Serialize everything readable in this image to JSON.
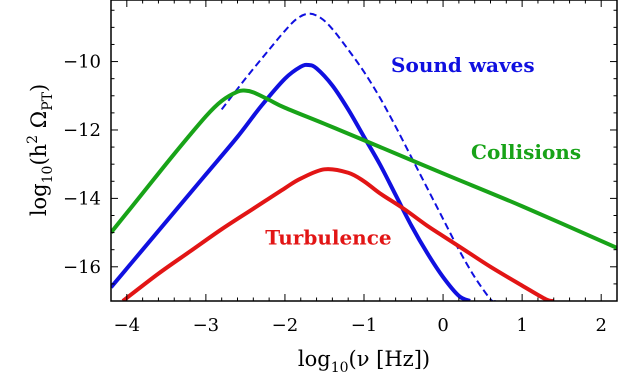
{
  "chart_data": {
    "type": "line",
    "title": "",
    "xlabel_parts": {
      "pre": "log",
      "sub": "10",
      "post": "(ν [Hz])"
    },
    "ylabel_parts": {
      "pre": "log",
      "sub": "10",
      "mid": "(h",
      "sup": "2",
      "omega": " Ω",
      "osub": "PT",
      "post": ")"
    },
    "xlim": [
      -4.2,
      2.2
    ],
    "ylim": [
      -17.0,
      -8.2
    ],
    "xticks": [
      -4,
      -3,
      -2,
      -1,
      0,
      1,
      2
    ],
    "xtick_labels": [
      "−4",
      "−3",
      "−2",
      "−1",
      "0",
      "1",
      "2"
    ],
    "yticks": [
      -16,
      -14,
      -12,
      -10
    ],
    "ytick_labels": [
      "−16",
      "−14",
      "−12",
      "−10"
    ],
    "grid": false,
    "series": [
      {
        "name": "Sound waves",
        "color": "#1010e0",
        "style": "solid",
        "x": [
          -4.2,
          -3.8,
          -3.4,
          -3.0,
          -2.6,
          -2.3,
          -2.0,
          -1.8,
          -1.7,
          -1.6,
          -1.4,
          -1.2,
          -1.0,
          -0.8,
          -0.6,
          -0.4,
          -0.2,
          0.0,
          0.2,
          0.34
        ],
        "y": [
          -16.6,
          -15.5,
          -14.4,
          -13.3,
          -12.2,
          -11.3,
          -10.5,
          -10.15,
          -10.1,
          -10.2,
          -10.7,
          -11.4,
          -12.2,
          -13.0,
          -13.9,
          -14.8,
          -15.6,
          -16.3,
          -16.85,
          -17.0
        ]
      },
      {
        "name": "Sound waves (dashed)",
        "color": "#1010e0",
        "style": "dashed",
        "x": [
          -2.8,
          -2.5,
          -2.2,
          -2.0,
          -1.85,
          -1.7,
          -1.55,
          -1.4,
          -1.2,
          -1.0,
          -0.8,
          -0.6,
          -0.4,
          -0.2,
          0.0,
          0.2,
          0.4,
          0.6,
          0.66
        ],
        "y": [
          -11.4,
          -10.5,
          -9.65,
          -9.1,
          -8.75,
          -8.6,
          -8.72,
          -9.05,
          -9.65,
          -10.3,
          -11.05,
          -11.9,
          -12.8,
          -13.7,
          -14.6,
          -15.5,
          -16.3,
          -16.95,
          -17.0
        ]
      },
      {
        "name": "Collisions",
        "color": "#18a318",
        "style": "solid",
        "x": [
          -4.2,
          -3.8,
          -3.4,
          -3.0,
          -2.8,
          -2.6,
          -2.5,
          -2.4,
          -2.2,
          -2.0,
          -1.5,
          -1.0,
          0.0,
          1.0,
          2.2
        ],
        "y": [
          -15.0,
          -13.85,
          -12.7,
          -11.6,
          -11.15,
          -10.88,
          -10.85,
          -10.9,
          -11.12,
          -11.35,
          -11.82,
          -12.3,
          -13.27,
          -14.23,
          -15.45
        ]
      },
      {
        "name": "Turbulence",
        "color": "#e21515",
        "style": "solid",
        "x": [
          -4.05,
          -3.6,
          -3.2,
          -2.8,
          -2.4,
          -2.0,
          -1.8,
          -1.5,
          -1.2,
          -1.0,
          -0.8,
          -0.5,
          -0.2,
          0.0,
          0.3,
          0.6,
          1.0,
          1.3,
          1.4
        ],
        "y": [
          -17.0,
          -16.2,
          -15.55,
          -14.9,
          -14.3,
          -13.7,
          -13.42,
          -13.15,
          -13.25,
          -13.5,
          -13.85,
          -14.3,
          -14.8,
          -15.1,
          -15.55,
          -16.0,
          -16.55,
          -16.95,
          -17.0
        ]
      }
    ],
    "annotations": [
      {
        "id": "sound",
        "text": "Sound waves",
        "color": "#1010e0",
        "x": 0.25,
        "y": -10.3
      },
      {
        "id": "coll",
        "text": "Collisions",
        "color": "#18a318",
        "x": 1.05,
        "y": -12.85
      },
      {
        "id": "turb",
        "text": "Turbulence",
        "color": "#e21515",
        "x": -1.45,
        "y": -15.35
      }
    ]
  }
}
